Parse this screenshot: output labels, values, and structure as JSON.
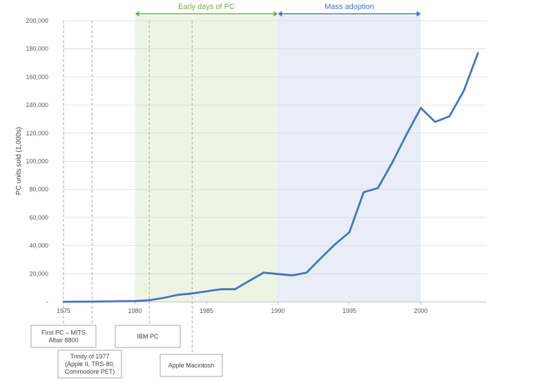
{
  "chart_data": {
    "type": "line",
    "ylabel": "PC units sold (1,000s)",
    "xlim": [
      1975,
      2005
    ],
    "ylim": [
      0,
      200000
    ],
    "x_ticks": [
      "1975",
      "1980",
      "1985",
      "1990",
      "1995",
      "2000"
    ],
    "y_ticks": [
      "-",
      "20,000",
      "40,000",
      "60,000",
      "80,000",
      "100,000",
      "120,000",
      "140,000",
      "160,000",
      "180,000",
      "200,000"
    ],
    "grid": true,
    "series_color": "#4472C4",
    "x": [
      1975,
      1976,
      1977,
      1978,
      1979,
      1980,
      1981,
      1982,
      1983,
      1984,
      1985,
      1986,
      1987,
      1988,
      1989,
      1990,
      1991,
      1992,
      1993,
      1994,
      1995,
      1996,
      1997,
      1998,
      1999,
      2000,
      2001,
      2002,
      2003,
      2004
    ],
    "series": [
      {
        "values": [
          50,
          100,
          200,
          300,
          500,
          600,
          1200,
          2800,
          5000,
          6000,
          7500,
          9000,
          9000,
          15000,
          20800,
          19800,
          18800,
          20800,
          31000,
          41000,
          49500,
          78000,
          81000,
          99000,
          119000,
          138000,
          128000,
          132000,
          150000,
          177000
        ]
      }
    ],
    "periods": [
      {
        "label": "Early days of PC",
        "start": 1980,
        "end": 1990,
        "color": "#EEF4E4",
        "label_color": "#70AD47"
      },
      {
        "label": "Mass adoption",
        "start": 1990,
        "end": 2000,
        "color": "#E8EDF8",
        "label_color": "#4472C4"
      }
    ],
    "events": [
      {
        "year": 1975,
        "label_lines": [
          "First PC – MITS",
          "Altair 8800"
        ]
      },
      {
        "year": 1977,
        "label_lines": [
          "Trinity of 1977",
          "(Apple II, TRS-80,",
          "Commodore PET)"
        ]
      },
      {
        "year": 1981,
        "label_lines": [
          "IBM PC"
        ]
      },
      {
        "year": 1984,
        "label_lines": [
          "Apple Macintosh"
        ]
      }
    ]
  }
}
